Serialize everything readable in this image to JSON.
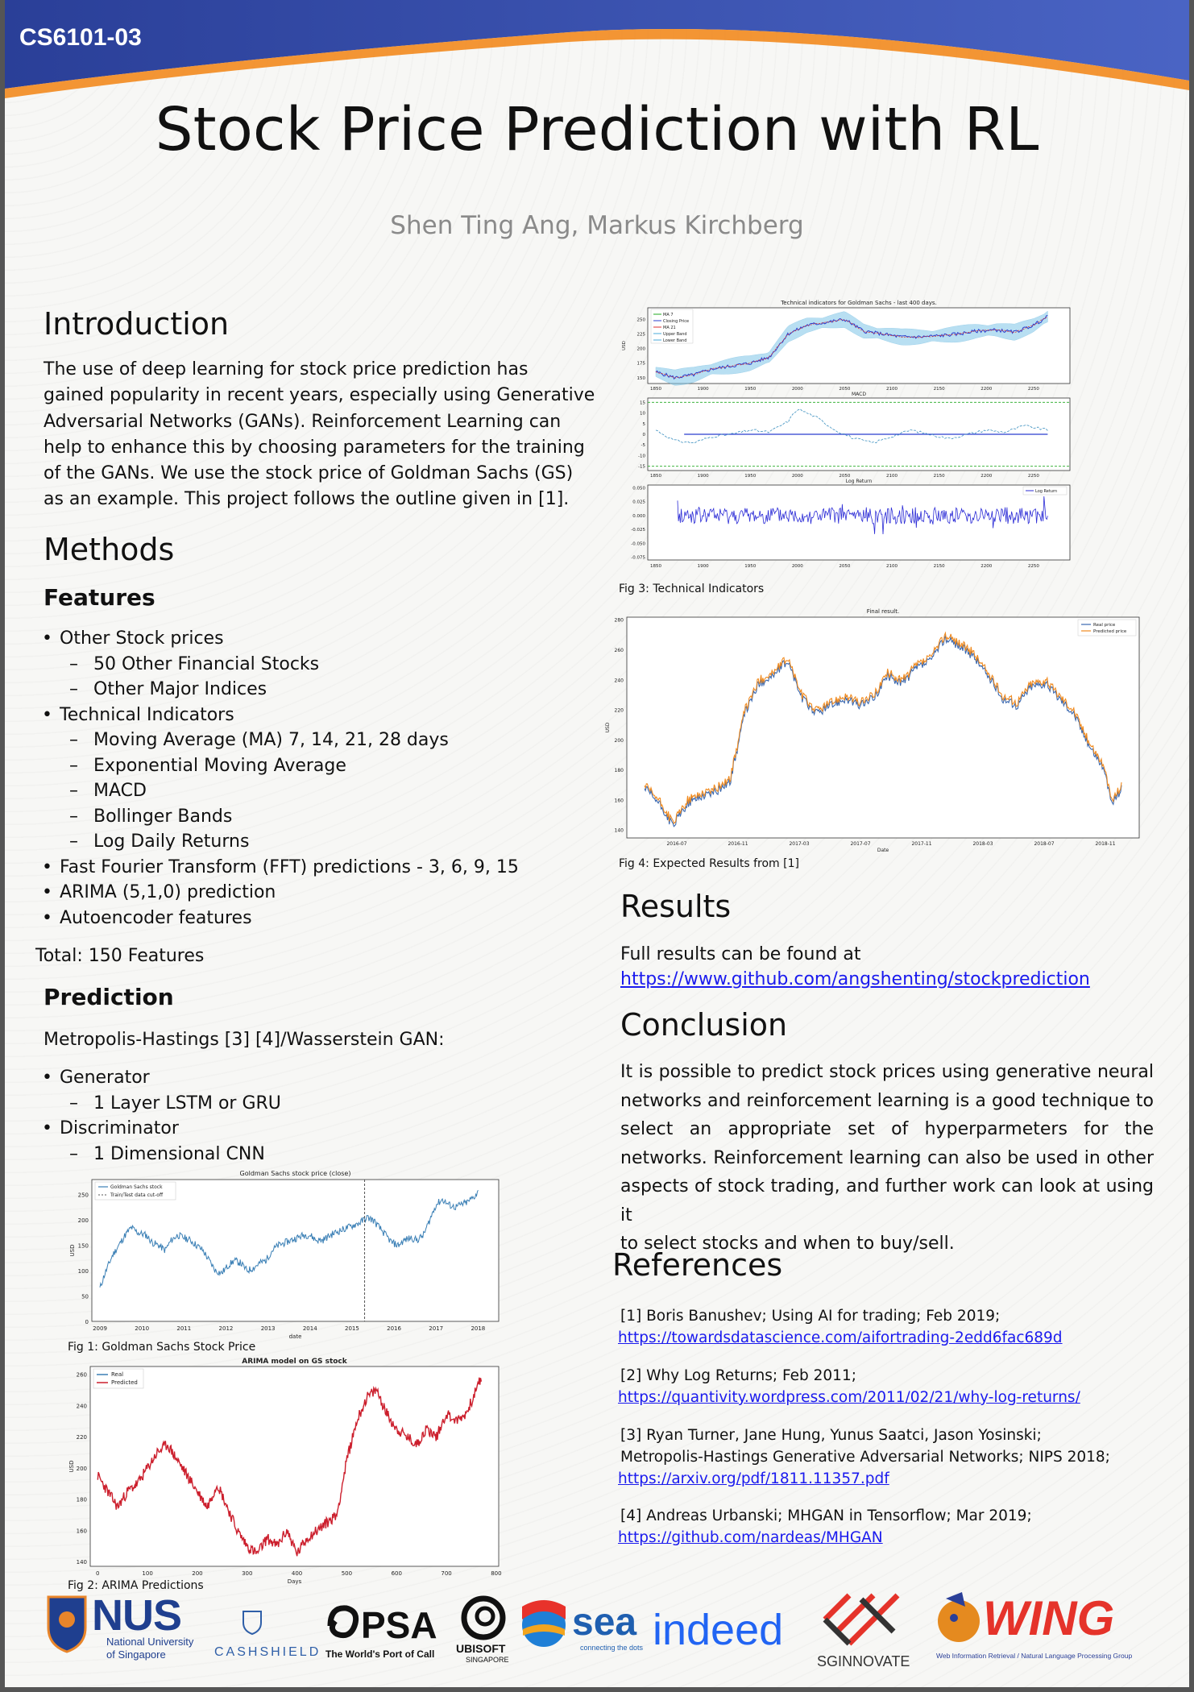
{
  "header": {
    "course": "CS6101-03",
    "title": "Stock Price Prediction with RL",
    "authors": "Shen Ting Ang, Markus Kirchberg"
  },
  "intro": {
    "heading": "Introduction",
    "lines": [
      "The use of deep learning for stock price prediction has",
      "gained popularity in recent years, especially using Generative",
      "Adversarial Networks (GANs). Reinforcement Learning can",
      "help to enhance this by choosing parameters for the training",
      "of the GANs. We use the stock price of Goldman Sachs (GS)",
      "as an example. This project follows the outline given in [1]."
    ]
  },
  "methods": {
    "heading": "Methods",
    "features_heading": "Features",
    "features": [
      {
        "level": 1,
        "text": "Other Stock prices"
      },
      {
        "level": 2,
        "text": "50 Other Financial Stocks"
      },
      {
        "level": 2,
        "text": "Other Major Indices"
      },
      {
        "level": 1,
        "text": "Technical Indicators"
      },
      {
        "level": 2,
        "text": "Moving Average (MA) 7, 14, 21, 28 days"
      },
      {
        "level": 2,
        "text": "Exponential Moving Average"
      },
      {
        "level": 2,
        "text": "MACD"
      },
      {
        "level": 2,
        "text": "Bollinger Bands"
      },
      {
        "level": 2,
        "text": "Log Daily Returns"
      },
      {
        "level": 1,
        "text": "Fast Fourier Transform (FFT) predictions - 3, 6, 9, 15"
      },
      {
        "level": 1,
        "text": "ARIMA (5,1,0) prediction"
      },
      {
        "level": 1,
        "text": "Autoencoder features"
      }
    ],
    "total": "Total: 150 Features",
    "prediction_heading": "Prediction",
    "prediction_intro": "Metropolis-Hastings [3] [4]/Wasserstein GAN:",
    "prediction_items": [
      {
        "level": 1,
        "text": "Generator"
      },
      {
        "level": 2,
        "text": "1 Layer LSTM or GRU"
      },
      {
        "level": 1,
        "text": "Discriminator"
      },
      {
        "level": 2,
        "text": "1 Dimensional CNN"
      }
    ]
  },
  "figures": {
    "fig1": "Fig 1: Goldman Sachs Stock Price",
    "fig2": "Fig 2: ARIMA Predictions",
    "fig3": "Fig 3: Technical Indicators",
    "fig4": "Fig 4: Expected Results from [1]"
  },
  "results": {
    "heading": "Results",
    "text": "Full results can be found at",
    "link": "https://www.github.com/angshenting/stockprediction"
  },
  "conclusion": {
    "heading": "Conclusion",
    "lines": [
      "It is possible to predict stock prices using generative neural",
      "networks and reinforcement learning is a good technique to",
      "select an appropriate set of hyperparmeters for the",
      "networks. Reinforcement learning can also be used in other",
      "aspects of stock trading, and further work can look at using it",
      "to select stocks and when to buy/sell."
    ]
  },
  "references": {
    "heading": "References",
    "items": [
      {
        "text": "[1] Boris Banushev; Using AI for trading; Feb 2019;",
        "link": "https://towardsdatascience.com/aifortrading-2edd6fac689d"
      },
      {
        "text": "[2] Why Log Returns; Feb 2011;",
        "link": "https://quantivity.wordpress.com/2011/02/21/why-log-returns/"
      },
      {
        "text": "[3] Ryan Turner, Jane Hung, Yunus Saatci, Jason Yosinski;",
        "text2": "Metropolis-Hastings Generative Adversarial Networks; NIPS 2018;",
        "link": "https://arxiv.org/pdf/1811.11357.pdf"
      },
      {
        "text": "[4] Andreas Urbanski; MHGAN in Tensorflow; Mar 2019;",
        "link": "https://github.com/nardeas/MHGAN"
      }
    ]
  },
  "logos": {
    "nus": "NUS",
    "nus_sub1": "National University",
    "nus_sub2": "of Singapore",
    "cashshield": "CASHSHIELD",
    "psa": "PSA",
    "psa_sub": "The World's Port of Call",
    "ubisoft": "UBISOFT",
    "ubisoft_sub": "SINGAPORE",
    "sea": "sea",
    "sea_sub": "connecting the dots",
    "indeed": "indeed",
    "sginnovate": "SGINNOVATE",
    "wing": "WING",
    "wing_sub": "Web Information Retrieval / Natural Language Processing Group"
  },
  "chart_data": [
    {
      "id": "fig1",
      "type": "line",
      "title": "Goldman Sachs stock price (close)",
      "xlabel": "date",
      "ylabel": "USD",
      "xlim": [
        2009,
        2018.3
      ],
      "ylim": [
        0,
        270
      ],
      "xticks": [
        "2009",
        "2010",
        "2011",
        "2012",
        "2013",
        "2014",
        "2015",
        "2016",
        "2017",
        "2018"
      ],
      "yticks": [
        0,
        50,
        100,
        150,
        200,
        250
      ],
      "legend": [
        "Goldman Sachs stock",
        "Train/Test data cut-off"
      ],
      "cutoff_x": 2015.3,
      "series": [
        {
          "name": "Goldman Sachs stock",
          "color": "#3a7fb5",
          "x": [
            2009.0,
            2009.1,
            2009.2,
            2009.3,
            2009.45,
            2009.6,
            2009.75,
            2009.9,
            2010.1,
            2010.25,
            2010.4,
            2010.55,
            2010.7,
            2010.85,
            2011.0,
            2011.15,
            2011.3,
            2011.45,
            2011.6,
            2011.75,
            2011.9,
            2012.05,
            2012.2,
            2012.35,
            2012.5,
            2012.65,
            2012.8,
            2012.95,
            2013.1,
            2013.25,
            2013.4,
            2013.55,
            2013.7,
            2013.85,
            2014.0,
            2014.15,
            2014.3,
            2014.45,
            2014.6,
            2014.75,
            2014.9,
            2015.05,
            2015.2,
            2015.35,
            2015.5,
            2015.65,
            2015.8,
            2015.95,
            2016.1,
            2016.25,
            2016.4,
            2016.55,
            2016.7,
            2016.85,
            2017.0,
            2017.15,
            2017.3,
            2017.45,
            2017.6,
            2017.75,
            2017.9,
            2018.0
          ],
          "y": [
            65,
            90,
            110,
            130,
            150,
            170,
            185,
            175,
            170,
            155,
            150,
            140,
            160,
            170,
            165,
            160,
            150,
            140,
            120,
            100,
            95,
            110,
            120,
            115,
            100,
            105,
            115,
            120,
            140,
            150,
            155,
            160,
            165,
            170,
            170,
            160,
            160,
            168,
            175,
            180,
            185,
            190,
            195,
            205,
            200,
            185,
            170,
            155,
            150,
            160,
            165,
            160,
            170,
            200,
            230,
            240,
            230,
            225,
            230,
            235,
            245,
            255
          ]
        }
      ]
    },
    {
      "id": "fig2",
      "type": "line",
      "title": "ARIMA model on GS stock",
      "xlabel": "Days",
      "ylabel": "USD",
      "xlim": [
        -15,
        805
      ],
      "ylim": [
        137,
        265
      ],
      "xticks": [
        0,
        100,
        200,
        300,
        400,
        500,
        600,
        700,
        800
      ],
      "yticks": [
        140,
        160,
        180,
        200,
        220,
        240,
        260
      ],
      "legend": [
        "Real",
        "Predicted"
      ],
      "series": [
        {
          "name": "Real",
          "color": "#3a7fb5"
        },
        {
          "name": "Predicted",
          "color": "#cc1f2d",
          "x": [
            0,
            20,
            40,
            60,
            80,
            100,
            120,
            140,
            160,
            180,
            200,
            220,
            240,
            260,
            280,
            300,
            320,
            340,
            360,
            380,
            400,
            420,
            440,
            460,
            480,
            500,
            520,
            540,
            560,
            580,
            600,
            620,
            640,
            660,
            680,
            700,
            720,
            740,
            760,
            770
          ],
          "y": [
            195,
            185,
            175,
            185,
            190,
            200,
            210,
            215,
            205,
            195,
            185,
            175,
            190,
            175,
            160,
            150,
            145,
            155,
            150,
            160,
            145,
            155,
            160,
            165,
            170,
            205,
            230,
            245,
            250,
            235,
            225,
            220,
            215,
            225,
            220,
            235,
            230,
            235,
            250,
            258
          ]
        }
      ]
    },
    {
      "id": "fig3",
      "type": "line",
      "title": "Technical indicators for Goldman Sachs - last 400 days.",
      "panels": [
        {
          "name": "price",
          "ylabel": "USD",
          "ylim": [
            140,
            270
          ],
          "yticks": [
            150,
            175,
            200,
            225,
            250
          ],
          "legend": [
            "MA 7",
            "Closing Price",
            "MA 21",
            "Upper Band",
            "Lower Band"
          ],
          "x": [
            1850,
            1870,
            1890,
            1910,
            1930,
            1950,
            1970,
            1990,
            2010,
            2030,
            2050,
            2070,
            2090,
            2110,
            2130,
            2150,
            2170,
            2190,
            2210,
            2230,
            2250,
            2265
          ],
          "y": [
            160,
            150,
            155,
            165,
            170,
            175,
            185,
            225,
            240,
            245,
            250,
            230,
            225,
            220,
            220,
            222,
            225,
            230,
            232,
            228,
            240,
            255
          ]
        },
        {
          "name": "MACD",
          "title": "MACD",
          "ylim": [
            -17,
            17
          ],
          "yticks": [
            15,
            10,
            5,
            0,
            -5,
            -10,
            -15
          ],
          "x": [
            1850,
            1870,
            1890,
            1910,
            1930,
            1950,
            1970,
            1990,
            2000,
            2020,
            2040,
            2060,
            2080,
            2100,
            2120,
            2140,
            2160,
            2180,
            2200,
            2220,
            2240,
            2265
          ],
          "y": [
            2,
            -3,
            -4,
            -1,
            0,
            2,
            1,
            6,
            12,
            8,
            2,
            -2,
            -4,
            -1,
            2,
            0,
            -2,
            0,
            2,
            1,
            4,
            2
          ]
        },
        {
          "name": "Log Return",
          "title": "Log Return",
          "legend": [
            "Log Return"
          ],
          "ylim": [
            -0.08,
            0.055
          ],
          "yticks": [
            0.05,
            0.025,
            0,
            -0.025,
            -0.05,
            -0.075
          ]
        }
      ],
      "xticks": [
        1850,
        1900,
        1950,
        2000,
        2050,
        2100,
        2150,
        2200,
        2250
      ]
    },
    {
      "id": "fig4",
      "type": "line",
      "title": "Final result.",
      "xlabel": "Date",
      "ylabel": "USD",
      "ylim": [
        135,
        282
      ],
      "xticks": [
        "2016-07",
        "2016-11",
        "2017-03",
        "2017-07",
        "2017-11",
        "2018-03",
        "2018-07",
        "2018-11"
      ],
      "yticks": [
        140,
        160,
        180,
        200,
        220,
        240,
        260,
        280
      ],
      "legend": [
        "Real price",
        "Predicted price"
      ],
      "series": [
        {
          "name": "Real price",
          "color": "#3a68b0"
        },
        {
          "name": "Predicted price",
          "color": "#f08a1e",
          "x": [
            0,
            0.03,
            0.06,
            0.09,
            0.12,
            0.15,
            0.18,
            0.21,
            0.24,
            0.27,
            0.3,
            0.33,
            0.36,
            0.39,
            0.42,
            0.45,
            0.48,
            0.51,
            0.54,
            0.57,
            0.6,
            0.63,
            0.66,
            0.69,
            0.72,
            0.75,
            0.78,
            0.81,
            0.84,
            0.87,
            0.9,
            0.93,
            0.96,
            0.98,
            1.0
          ],
          "y": [
            170,
            160,
            145,
            160,
            165,
            168,
            175,
            220,
            240,
            245,
            255,
            230,
            220,
            225,
            230,
            225,
            230,
            245,
            240,
            250,
            255,
            270,
            265,
            258,
            245,
            230,
            225,
            238,
            240,
            230,
            220,
            200,
            185,
            160,
            170
          ]
        }
      ]
    }
  ]
}
